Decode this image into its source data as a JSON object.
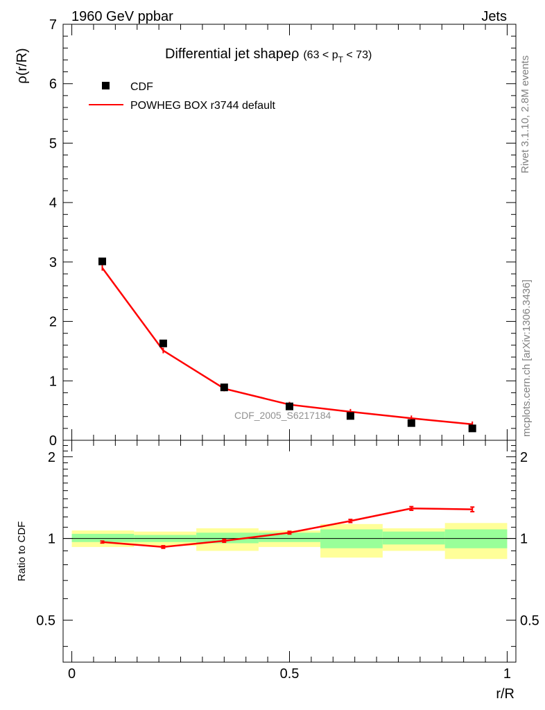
{
  "header": {
    "left_label": "1960 GeV ppbar",
    "right_label": "Jets"
  },
  "side_labels": {
    "rivet": "Rivet 3.1.10,  2.8M events",
    "mcplots": "mcplots.cern.ch [arXiv:1306.3436]"
  },
  "chart_data": [
    {
      "type": "scatter",
      "panel": "main",
      "title_main": "Differential jet shapeρ",
      "title_sub_open": "(63 < p",
      "title_sub_index": "T",
      "title_sub_close": " < 73)",
      "ylabel": "ρ(r/R)",
      "xlabel": "",
      "xlim": [
        -0.02,
        1.02
      ],
      "ylim": [
        0,
        7
      ],
      "yticks": [
        "0",
        "1",
        "2",
        "3",
        "4",
        "5",
        "6",
        "7"
      ],
      "watermark": "CDF_2005_S6217184",
      "legend_position": "top-left",
      "series": [
        {
          "name": "CDF",
          "style": "markers",
          "color": "#000000",
          "x": [
            0.07,
            0.21,
            0.35,
            0.5,
            0.64,
            0.78,
            0.92
          ],
          "y": [
            3.01,
            1.63,
            0.89,
            0.57,
            0.41,
            0.29,
            0.2
          ]
        },
        {
          "name": "POWHEG BOX r3744 default",
          "style": "line",
          "color": "#ff0000",
          "x": [
            0.07,
            0.21,
            0.35,
            0.5,
            0.64,
            0.78,
            0.92
          ],
          "y": [
            2.9,
            1.51,
            0.87,
            0.6,
            0.48,
            0.37,
            0.27
          ]
        }
      ]
    },
    {
      "type": "line",
      "panel": "ratio",
      "ylabel": "Ratio to CDF",
      "xlabel": "r/R",
      "xlim": [
        -0.02,
        1.02
      ],
      "ylim": [
        0.35,
        2.3
      ],
      "yscale": "log",
      "xticks": [
        "0",
        "0.5",
        "1"
      ],
      "yticks": [
        "0.5",
        "1",
        "2"
      ],
      "bins": [
        0,
        0.143,
        0.286,
        0.429,
        0.571,
        0.714,
        0.857,
        1.0
      ],
      "band_yellow": [
        [
          0.93,
          1.07
        ],
        [
          0.94,
          1.06
        ],
        [
          0.9,
          1.09
        ],
        [
          0.93,
          1.07
        ],
        [
          0.85,
          1.13
        ],
        [
          0.9,
          1.09
        ],
        [
          0.84,
          1.14
        ]
      ],
      "band_green": [
        [
          0.97,
          1.04
        ],
        [
          0.97,
          1.03
        ],
        [
          0.96,
          1.05
        ],
        [
          0.97,
          1.05
        ],
        [
          0.92,
          1.08
        ],
        [
          0.95,
          1.06
        ],
        [
          0.92,
          1.08
        ]
      ],
      "series": [
        {
          "name": "POWHEG BOX r3744 default",
          "color": "#ff0000",
          "x": [
            0.07,
            0.21,
            0.35,
            0.5,
            0.64,
            0.78,
            0.92
          ],
          "y": [
            0.97,
            0.93,
            0.98,
            1.05,
            1.16,
            1.29,
            1.28
          ],
          "err": [
            0.008,
            0.01,
            0.012,
            0.012,
            0.015,
            0.02,
            0.025
          ]
        }
      ]
    }
  ]
}
